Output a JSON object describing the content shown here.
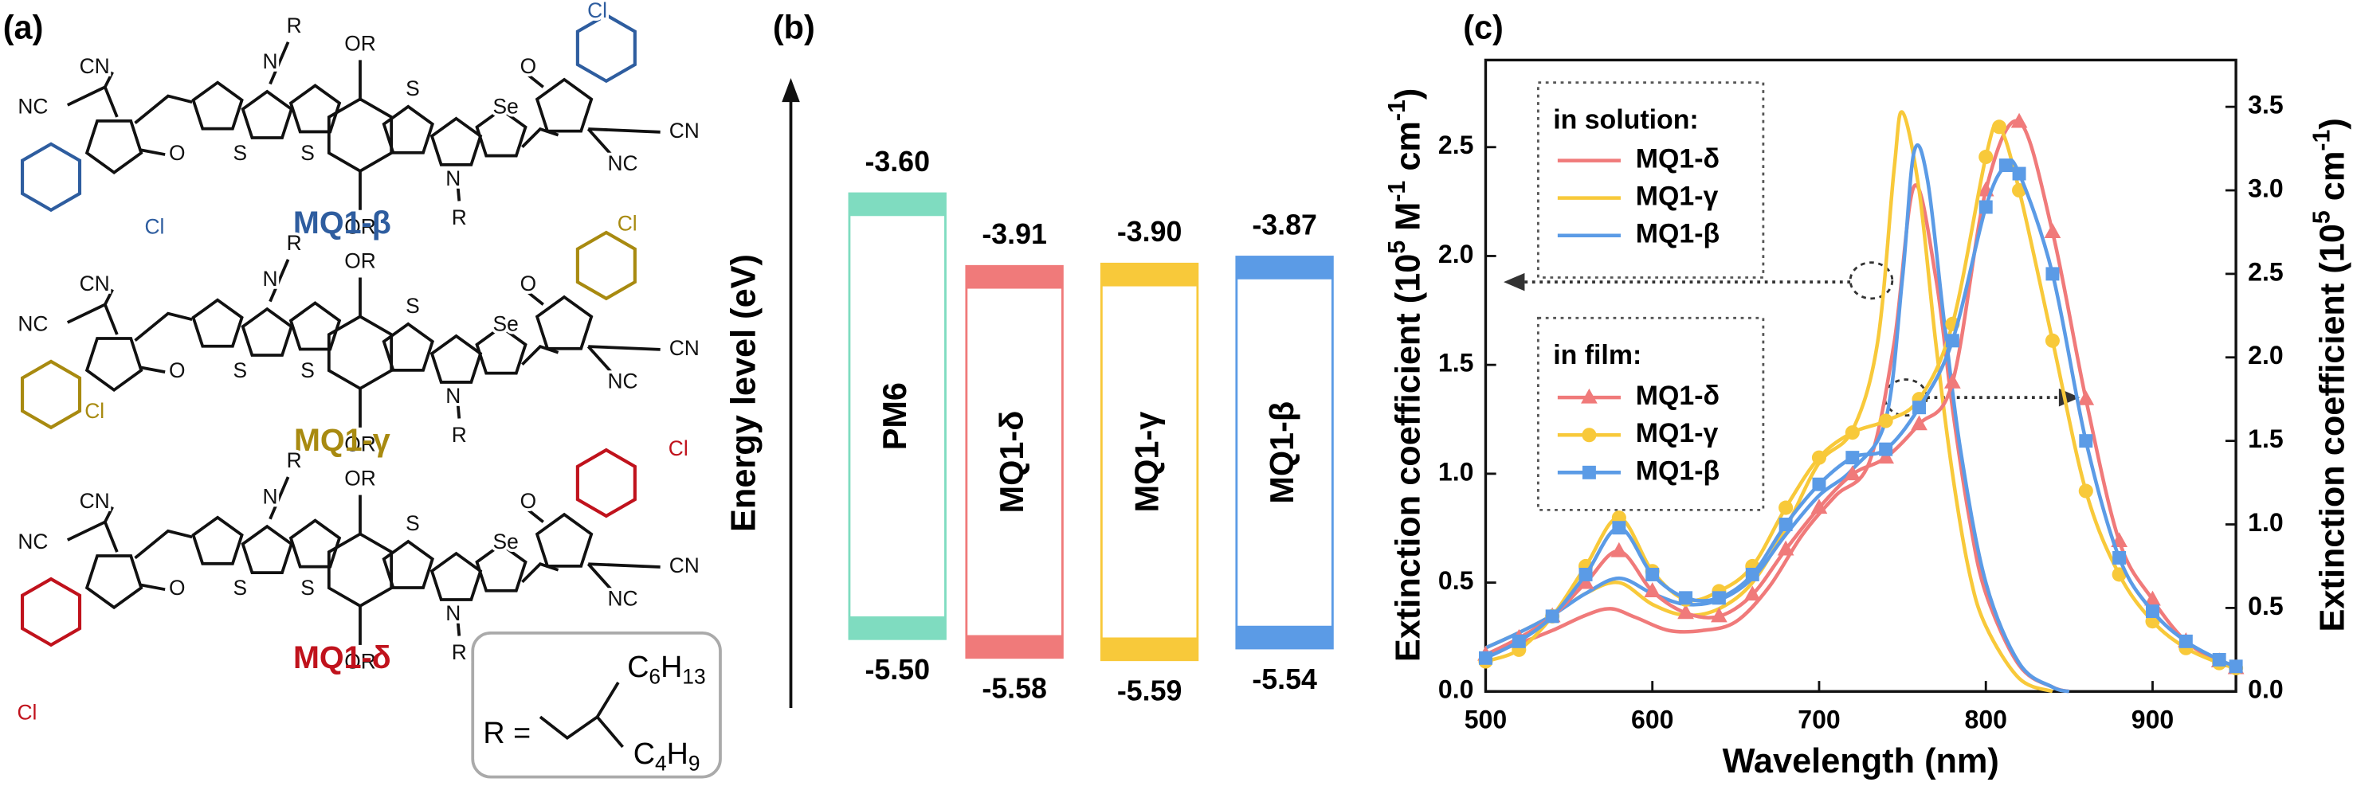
{
  "labels": {
    "a": "(a)",
    "b": "(b)",
    "c": "(c)"
  },
  "molecules": [
    {
      "name": "MQ1-β",
      "color": "#2e5d9f",
      "atoms": [
        "CN",
        "NC",
        "O",
        "Cl",
        "N",
        "R",
        "OR",
        "S",
        "S",
        "S",
        "Se",
        "N",
        "R",
        "OR",
        "O",
        "Cl",
        "CN",
        "NC"
      ]
    },
    {
      "name": "MQ1-γ",
      "color": "#a88a10",
      "atoms": [
        "CN",
        "NC",
        "O",
        "Cl",
        "N",
        "R",
        "OR",
        "S",
        "S",
        "S",
        "Se",
        "N",
        "R",
        "OR",
        "O",
        "Cl",
        "CN",
        "NC"
      ]
    },
    {
      "name": "MQ1-δ",
      "color": "#c0121c",
      "atoms": [
        "CN",
        "NC",
        "O",
        "Cl",
        "N",
        "R",
        "OR",
        "S",
        "S",
        "S",
        "Se",
        "N",
        "R",
        "OR",
        "O",
        "Cl",
        "CN",
        "NC"
      ]
    }
  ],
  "r_group": {
    "lhs": "R =",
    "branch1": [
      "C",
      "6",
      "H",
      "13"
    ],
    "branch2": [
      "C",
      "4",
      "H",
      "9"
    ]
  },
  "chart_data": [
    {
      "type": "energy-level",
      "ylabel": "Energy level (eV)",
      "categories": [
        "PM6",
        "MQ1-δ",
        "MQ1-γ",
        "MQ1-β"
      ],
      "colors": [
        "#7fdcc0",
        "#f07a7a",
        "#f8c93a",
        "#5b9be6"
      ],
      "lumo": [
        -3.6,
        -3.91,
        -3.9,
        -3.87
      ],
      "lumo_labels": [
        "-3.60",
        "-3.91",
        "-3.90",
        "-3.87"
      ],
      "homo": [
        -5.5,
        -5.58,
        -5.59,
        -5.54
      ],
      "homo_labels": [
        "-5.50",
        "-5.58",
        "-5.59",
        "-5.54"
      ]
    },
    {
      "type": "line",
      "xlabel": "Wavelength (nm)",
      "ylabel": [
        "Extinction coefficient (10",
        "5",
        " M",
        "-1",
        " cm",
        "-1",
        ")"
      ],
      "y2label": [
        "Extinction coefficient (10",
        "5",
        " cm",
        "-1",
        ")"
      ],
      "legend_titles": [
        "in solution:",
        "in film:"
      ],
      "xlim": [
        500,
        950
      ],
      "xticks": [
        500,
        600,
        700,
        800,
        900
      ],
      "ylim": [
        0,
        2.9
      ],
      "yticks": [
        {
          "value": 0,
          "label": "0.0"
        },
        0.5,
        {
          "value": 1,
          "label": "1.0"
        },
        1.5,
        {
          "value": 2,
          "label": "2.0"
        },
        2.5
      ],
      "y2lim": [
        0,
        3.78
      ],
      "y2ticks": [
        {
          "value": 0,
          "label": "0.0"
        },
        0.5,
        {
          "value": 1,
          "label": "1.0"
        },
        1.5,
        {
          "value": 2,
          "label": "2.0"
        },
        2.5,
        {
          "value": 3,
          "label": "3.0"
        },
        3.5
      ],
      "series": [
        {
          "name": "MQ1-δ",
          "color": "#f07a7a",
          "x": [
            500,
            520,
            540,
            560,
            575,
            590,
            610,
            630,
            650,
            670,
            690,
            710,
            730,
            745,
            757,
            770,
            780,
            790,
            800,
            820,
            840,
            850
          ],
          "values": [
            0.17,
            0.22,
            0.28,
            0.35,
            0.38,
            0.34,
            0.28,
            0.28,
            0.32,
            0.48,
            0.72,
            0.9,
            1.05,
            1.6,
            2.32,
            1.9,
            1.3,
            0.8,
            0.45,
            0.12,
            0.02,
            0.0
          ]
        },
        {
          "name": "MQ1-γ",
          "color": "#f8c93a",
          "x": [
            500,
            520,
            540,
            560,
            580,
            600,
            620,
            640,
            660,
            680,
            700,
            720,
            735,
            745,
            750,
            760,
            770,
            780,
            790,
            800,
            820,
            840
          ],
          "values": [
            0.2,
            0.27,
            0.35,
            0.45,
            0.5,
            0.4,
            0.35,
            0.38,
            0.5,
            0.75,
            1.05,
            1.2,
            1.6,
            2.4,
            2.66,
            2.3,
            1.6,
            1.0,
            0.55,
            0.3,
            0.06,
            0.0
          ]
        },
        {
          "name": "MQ1-β",
          "color": "#5b9be6",
          "x": [
            500,
            520,
            540,
            560,
            580,
            600,
            620,
            640,
            660,
            680,
            700,
            720,
            740,
            750,
            757,
            765,
            775,
            785,
            800,
            820,
            840,
            850
          ],
          "values": [
            0.2,
            0.27,
            0.35,
            0.45,
            0.52,
            0.45,
            0.4,
            0.42,
            0.52,
            0.72,
            0.9,
            1.02,
            1.25,
            1.9,
            2.48,
            2.35,
            1.7,
            1.1,
            0.5,
            0.13,
            0.02,
            0.0
          ]
        },
        {
          "name": "MQ1-δ",
          "color": "#f07a7a",
          "axis": "y2",
          "marker": "triangle",
          "x": [
            500,
            520,
            540,
            560,
            580,
            600,
            620,
            640,
            660,
            680,
            700,
            720,
            740,
            760,
            780,
            800,
            820,
            840,
            860,
            880,
            900,
            920,
            940,
            950
          ],
          "values": [
            0.22,
            0.32,
            0.45,
            0.65,
            0.84,
            0.6,
            0.47,
            0.45,
            0.58,
            0.85,
            1.1,
            1.3,
            1.4,
            1.6,
            1.85,
            3.0,
            3.41,
            2.75,
            1.75,
            0.9,
            0.55,
            0.3,
            0.18,
            0.14
          ]
        },
        {
          "name": "MQ1-γ",
          "color": "#f8c93a",
          "axis": "y2",
          "marker": "circle",
          "x": [
            500,
            520,
            540,
            560,
            580,
            600,
            620,
            640,
            660,
            680,
            700,
            720,
            740,
            760,
            780,
            800,
            808,
            820,
            840,
            860,
            880,
            900,
            920,
            940,
            950
          ],
          "values": [
            0.18,
            0.25,
            0.45,
            0.75,
            1.04,
            0.72,
            0.55,
            0.6,
            0.75,
            1.1,
            1.4,
            1.55,
            1.62,
            1.75,
            2.2,
            3.2,
            3.38,
            3.0,
            2.1,
            1.2,
            0.7,
            0.42,
            0.26,
            0.17,
            0.14
          ]
        },
        {
          "name": "MQ1-β",
          "color": "#5b9be6",
          "axis": "y2",
          "marker": "square",
          "x": [
            500,
            520,
            540,
            560,
            580,
            600,
            620,
            640,
            660,
            680,
            700,
            720,
            740,
            760,
            780,
            800,
            812,
            820,
            840,
            860,
            880,
            900,
            920,
            940,
            950
          ],
          "values": [
            0.2,
            0.3,
            0.45,
            0.7,
            0.98,
            0.7,
            0.56,
            0.56,
            0.7,
            1.0,
            1.24,
            1.4,
            1.45,
            1.7,
            2.1,
            2.9,
            3.15,
            3.1,
            2.5,
            1.5,
            0.8,
            0.48,
            0.3,
            0.19,
            0.15
          ]
        }
      ]
    }
  ]
}
